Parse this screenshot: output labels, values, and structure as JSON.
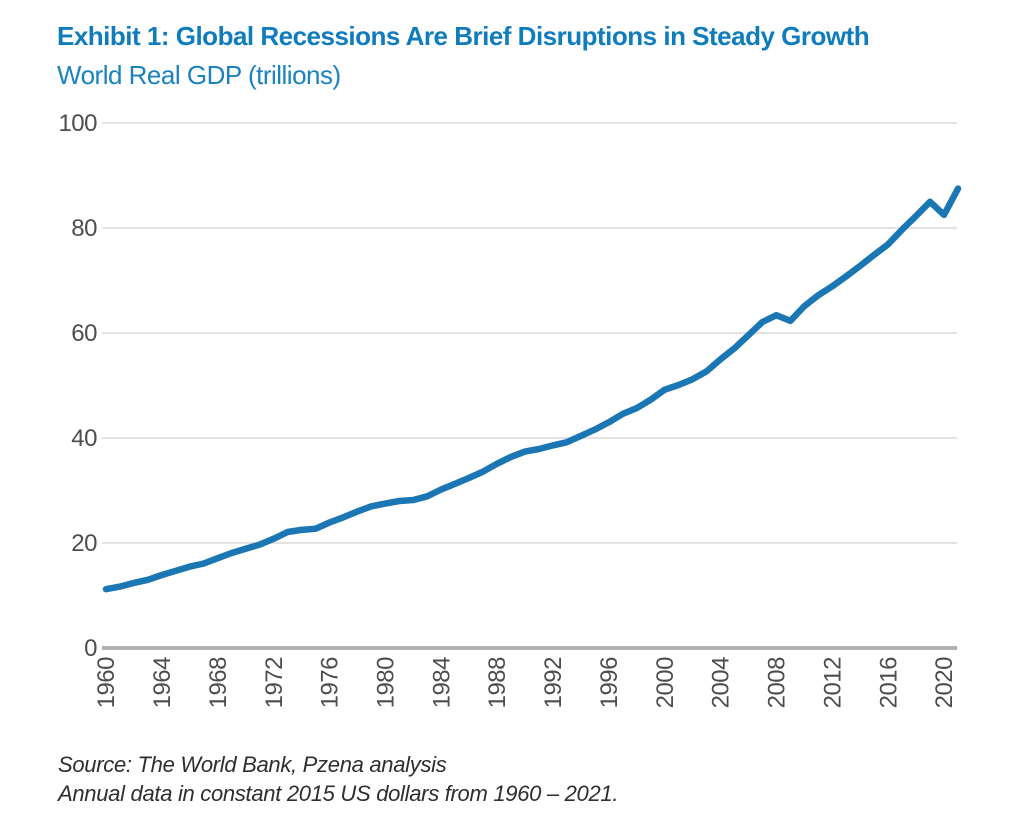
{
  "header": {
    "title": "Exhibit 1: Global Recessions Are Brief Disruptions in Steady Growth",
    "subtitle": "World Real GDP (trillions)"
  },
  "footer": {
    "line1": "Source: The World Bank, Pzena analysis",
    "line2": "Annual data in constant 2015 US dollars from 1960 – 2021."
  },
  "colors": {
    "title_blue": "#0f7cbd",
    "subtitle_blue": "#1b82c0",
    "line_blue": "#1b77b4",
    "axis_text": "#4d4d4d",
    "gridline": "#d9d9d9",
    "zero_line": "#b1b1b1",
    "footer_text": "#2e2e2e"
  },
  "chart_data": {
    "type": "line",
    "title": "Exhibit 1: Global Recessions Are Brief Disruptions in Steady Growth",
    "subtitle": "World Real GDP (trillions)",
    "xlabel": "",
    "ylabel": "World Real GDP (trillions)",
    "ylim": [
      0,
      100
    ],
    "y_ticks": [
      0,
      20,
      40,
      60,
      80,
      100
    ],
    "x_tick_labels": [
      "1960",
      "1964",
      "1968",
      "1972",
      "1976",
      "1980",
      "1984",
      "1988",
      "1992",
      "1996",
      "2000",
      "2004",
      "2008",
      "2012",
      "2016",
      "2020"
    ],
    "grid": true,
    "legend": "none",
    "x": [
      1960,
      1961,
      1962,
      1963,
      1964,
      1965,
      1966,
      1967,
      1968,
      1969,
      1970,
      1971,
      1972,
      1973,
      1974,
      1975,
      1976,
      1977,
      1978,
      1979,
      1980,
      1981,
      1982,
      1983,
      1984,
      1985,
      1986,
      1987,
      1988,
      1989,
      1990,
      1991,
      1992,
      1993,
      1994,
      1995,
      1996,
      1997,
      1998,
      1999,
      2000,
      2001,
      2002,
      2003,
      2004,
      2005,
      2006,
      2007,
      2008,
      2009,
      2010,
      2011,
      2012,
      2013,
      2014,
      2015,
      2016,
      2017,
      2018,
      2019,
      2020,
      2021
    ],
    "series": [
      {
        "name": "World Real GDP (trillions of constant 2015 US dollars)",
        "values": [
          11.2,
          11.7,
          12.4,
          13.0,
          13.9,
          14.7,
          15.5,
          16.1,
          17.1,
          18.1,
          18.9,
          19.7,
          20.8,
          22.1,
          22.5,
          22.7,
          23.9,
          24.9,
          26.0,
          27.0,
          27.5,
          28.0,
          28.2,
          28.9,
          30.2,
          31.3,
          32.4,
          33.6,
          35.1,
          36.4,
          37.4,
          37.9,
          38.6,
          39.2,
          40.4,
          41.6,
          43.0,
          44.6,
          45.7,
          47.3,
          49.2,
          50.1,
          51.2,
          52.7,
          55.0,
          57.1,
          59.6,
          62.1,
          63.4,
          62.3,
          65.1,
          67.2,
          68.9,
          70.8,
          72.8,
          74.9,
          76.9,
          79.7,
          82.3,
          85.0,
          82.5,
          87.5
        ]
      }
    ]
  }
}
